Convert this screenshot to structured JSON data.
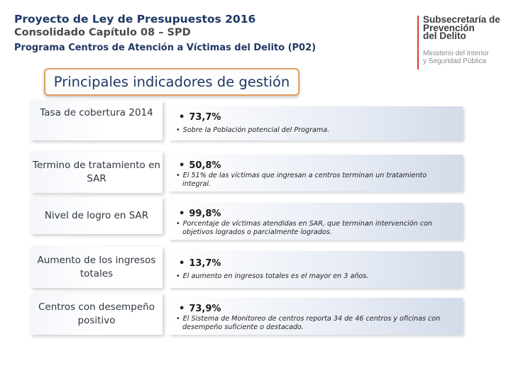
{
  "header": {
    "title": "Proyecto de Ley de Presupuestos 2016",
    "subtitle": "Consolidado Capítulo 08 – SPD",
    "program": "Programa Centros de Atención a Víctimas del Delito (P02)"
  },
  "logo": {
    "line1": "Subsecretaría de",
    "line2": "Prevención",
    "line3": "del Delito",
    "sub1": "Ministerio del Interior",
    "sub2": "y Seguridad Pública",
    "accent_color": "#e03b30"
  },
  "section_title": "Principales indicadores de gestión",
  "indicators": [
    {
      "label": "Tasa de cobertura 2014",
      "value": "73,7%",
      "note_line1": "Sobre la Población potencial del Programa.",
      "note_line2": ""
    },
    {
      "label": "Termino de tratamiento en SAR",
      "value": "50,8%",
      "note_line1": "El 51% de las víctimas que ingresan a centros terminan un tratamiento",
      "note_line2": "integral."
    },
    {
      "label": "Nivel de logro en SAR",
      "value": "99,8%",
      "note_line1": "Porcentaje de víctimas atendidas en SAR, que terminan intervención con",
      "note_line2": "objetivos logrados o parcialmente logrados."
    },
    {
      "label": "Aumento de los ingresos totales",
      "value": "13,7%",
      "note_line1": "El aumento en ingresos totales es el mayor en 3 años.",
      "note_line2": ""
    },
    {
      "label": "Centros con desempeño positivo",
      "value": "73,9%",
      "note_line1": "El Sistema de Monitoreo de centros reporta 34 de 46 centros y oficinas con",
      "note_line2": "desempeño suficiente o destacado."
    }
  ]
}
